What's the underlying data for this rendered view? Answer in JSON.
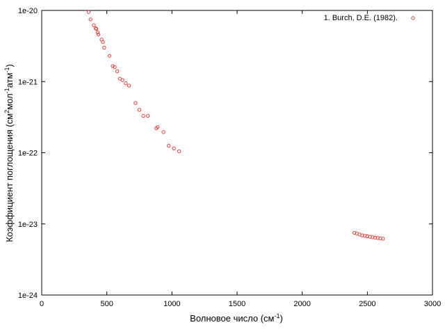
{
  "chart_data": {
    "type": "scatter",
    "xlabel_main": "Волновое число (см",
    "xlabel_sup": "-1",
    "xlabel_end": ")",
    "ylabel_parts": [
      "Коэффициент поглощения (см",
      "2",
      "мол",
      "-1",
      "атм",
      "-1",
      ")"
    ],
    "xlim": [
      0,
      3000
    ],
    "ylim": [
      1e-24,
      1e-20
    ],
    "yscale": "log",
    "xticks": [
      0,
      500,
      1000,
      1500,
      2000,
      2500,
      3000
    ],
    "xtick_labels": [
      "0",
      "500",
      "1000",
      "1500",
      "2000",
      "2500",
      "3000"
    ],
    "yticks": [
      1e-24,
      1e-23,
      1e-22,
      1e-21,
      1e-20
    ],
    "ytick_labels": [
      "1e-24",
      "1e-23",
      "1e-22",
      "1e-21",
      "1e-20"
    ],
    "grid": false,
    "legend_position": "top-right",
    "color": "#e8403a",
    "series": [
      {
        "name": "1. Burch, D.E. (1982).",
        "points": [
          [
            360,
            9.5e-21
          ],
          [
            375,
            7.5e-21
          ],
          [
            400,
            6.2e-21
          ],
          [
            415,
            5.6e-21
          ],
          [
            420,
            5.5e-21
          ],
          [
            430,
            4.9e-21
          ],
          [
            435,
            4.6e-21
          ],
          [
            460,
            3.9e-21
          ],
          [
            470,
            3.6e-21
          ],
          [
            480,
            3e-21
          ],
          [
            520,
            2.3e-21
          ],
          [
            545,
            1.65e-21
          ],
          [
            560,
            1.6e-21
          ],
          [
            580,
            1.4e-21
          ],
          [
            600,
            1.1e-21
          ],
          [
            620,
            1.05e-21
          ],
          [
            645,
            9.5e-22
          ],
          [
            670,
            8.8e-22
          ],
          [
            720,
            5e-22
          ],
          [
            750,
            4e-22
          ],
          [
            780,
            3.3e-22
          ],
          [
            815,
            3.3e-22
          ],
          [
            880,
            2.2e-22
          ],
          [
            890,
            2.3e-22
          ],
          [
            935,
            1.95e-22
          ],
          [
            975,
            1.25e-22
          ],
          [
            1015,
            1.15e-22
          ],
          [
            1055,
            1.05e-22
          ],
          [
            2400,
            7.5e-24
          ],
          [
            2420,
            7.3e-24
          ],
          [
            2440,
            7.1e-24
          ],
          [
            2460,
            6.9e-24
          ],
          [
            2480,
            6.8e-24
          ],
          [
            2500,
            6.7e-24
          ],
          [
            2520,
            6.6e-24
          ],
          [
            2540,
            6.5e-24
          ],
          [
            2560,
            6.4e-24
          ],
          [
            2580,
            6.35e-24
          ],
          [
            2600,
            6.25e-24
          ],
          [
            2620,
            6.2e-24
          ]
        ]
      }
    ]
  }
}
